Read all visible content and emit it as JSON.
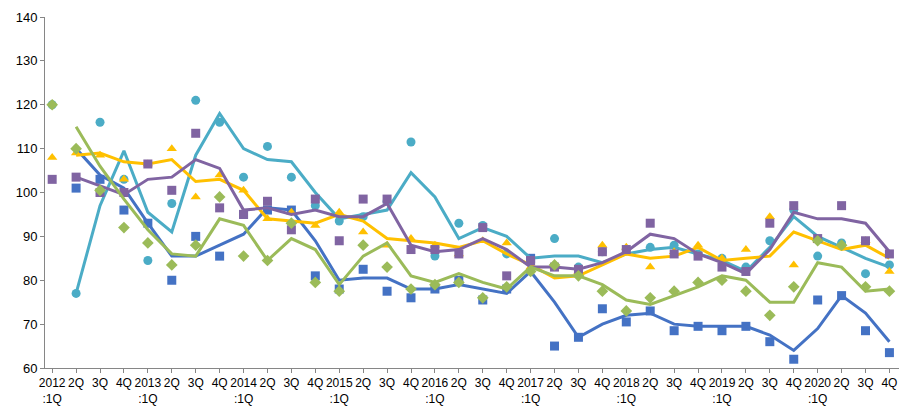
{
  "chart_data": {
    "type": "line",
    "categories": [
      "2012\n:1Q",
      "2Q",
      "3Q",
      "4Q",
      "2013\n:1Q",
      "2Q",
      "3Q",
      "4Q",
      "2014\n:1Q",
      "2Q",
      "3Q",
      "4Q",
      "2015\n:1Q",
      "2Q",
      "3Q",
      "4Q",
      "2016\n:1Q",
      "2Q",
      "3Q",
      "4Q",
      "2017\n:1Q",
      "2Q",
      "3Q",
      "4Q",
      "2018\n:1Q",
      "2Q",
      "3Q",
      "4Q",
      "2019\n:1Q",
      "2Q",
      "3Q",
      "4Q",
      "2020\n:1Q",
      "2Q",
      "3Q",
      "4Q"
    ],
    "ylim": [
      60,
      140
    ],
    "yticks": [
      60,
      70,
      80,
      90,
      100,
      110,
      120,
      130,
      140
    ],
    "grid": false,
    "series": [
      {
        "type": "scatter",
        "marker": "square",
        "color": "#4472c4",
        "values": [
          null,
          101,
          103,
          96,
          93,
          80,
          90,
          85.5,
          95,
          96,
          96,
          81,
          78,
          82.5,
          77.5,
          76,
          78,
          80,
          75.5,
          78,
          85,
          65,
          67,
          73.5,
          70.5,
          73,
          68.5,
          69.5,
          68.5,
          69.5,
          66,
          62,
          75.5,
          76.5,
          68.5,
          63.5
        ]
      },
      {
        "type": "line",
        "line_style": "solid",
        "color": "#4472c4",
        "values": [
          null,
          110,
          104,
          101,
          93,
          85.5,
          85.5,
          88,
          90.5,
          96.5,
          96,
          89,
          80,
          80.5,
          80.5,
          78,
          78,
          79,
          78,
          77,
          82,
          75,
          67,
          70,
          72,
          72.5,
          70,
          69.5,
          69.5,
          69.5,
          67.5,
          64,
          69,
          76.5,
          72.5,
          66
        ]
      },
      {
        "type": "scatter",
        "marker": "circle",
        "color": "#4bacc6",
        "values": [
          120,
          77,
          116,
          103,
          84.5,
          97.5,
          121,
          116,
          103.5,
          110.5,
          103.5,
          97,
          93.5,
          94.5,
          98,
          111.5,
          85.5,
          93,
          92.5,
          86,
          84,
          89.5,
          83,
          86.5,
          87,
          87.5,
          88,
          86,
          85,
          83,
          89,
          96,
          85.5,
          88.5,
          81.5,
          83.5
        ]
      },
      {
        "type": "line",
        "line_style": "solid",
        "color": "#4bacc6",
        "values": [
          null,
          77,
          97,
          109.5,
          95.5,
          91,
          108.5,
          118,
          110,
          107.5,
          107,
          100,
          94,
          95,
          96,
          104.5,
          99,
          89.5,
          92,
          90,
          85,
          85.5,
          85.5,
          84,
          86,
          87,
          87.5,
          86,
          84.5,
          82,
          87.5,
          94.5,
          90,
          87.5,
          85,
          83
        ]
      },
      {
        "type": "scatter",
        "marker": "triangle",
        "color": "#ffc000",
        "values": [
          108,
          109,
          108.5,
          103,
          106.5,
          110,
          99,
          104,
          100.5,
          94,
          95.5,
          92.5,
          95.5,
          91,
          88,
          89.5,
          88,
          86,
          89,
          88.5,
          83,
          83,
          82,
          88,
          87.5,
          83,
          86.5,
          88,
          85,
          87,
          94.5,
          83.5,
          89,
          88,
          89,
          82
        ]
      },
      {
        "type": "line",
        "line_style": "solid",
        "color": "#ffc000",
        "values": [
          null,
          108.5,
          109,
          107,
          106.5,
          107.5,
          102.5,
          103,
          100.5,
          94,
          93.5,
          93,
          95,
          93.5,
          89.5,
          89,
          88.5,
          87.5,
          89,
          86,
          83.5,
          80.5,
          81,
          83.5,
          86,
          85,
          85.5,
          87.5,
          84.5,
          85,
          85.5,
          91,
          89,
          87,
          88,
          85
        ]
      },
      {
        "type": "scatter",
        "marker": "square",
        "color": "#8064a2",
        "values": [
          103,
          103.5,
          100,
          100,
          106.5,
          100.5,
          113.5,
          96.5,
          95,
          98,
          91.5,
          98.5,
          89,
          98.5,
          98.5,
          87,
          87,
          86,
          92,
          81,
          84.5,
          83,
          82.5,
          86.5,
          87,
          93,
          86,
          85.5,
          83,
          82,
          93,
          97,
          89.5,
          97,
          89,
          86
        ]
      },
      {
        "type": "line",
        "line_style": "solid",
        "color": "#8064a2",
        "values": [
          null,
          103.5,
          101.5,
          99.5,
          103,
          103.5,
          107.5,
          105.5,
          96,
          96.5,
          95,
          96,
          94.5,
          94.5,
          97.5,
          88,
          86.5,
          87,
          89.5,
          87,
          83,
          83,
          82.5,
          84,
          86.5,
          90.5,
          89.5,
          86,
          84,
          81.5,
          87,
          95.5,
          94,
          94,
          93,
          86.5
        ]
      },
      {
        "type": "scatter",
        "marker": "diamond",
        "color": "#9bbb59",
        "values": [
          120,
          110,
          100.5,
          92,
          88.5,
          83.5,
          88,
          99,
          85.5,
          84.5,
          93,
          79.5,
          77.5,
          88,
          83,
          78,
          79,
          79.5,
          76,
          78.5,
          82,
          83.5,
          81,
          77.5,
          73,
          76,
          77.5,
          79.5,
          80,
          77.5,
          72,
          78.5,
          89,
          88,
          78.5,
          77.5
        ]
      },
      {
        "type": "line",
        "line_style": "solid",
        "color": "#9bbb59",
        "values": [
          null,
          115,
          106,
          98.5,
          91.5,
          86,
          85.5,
          94,
          92.5,
          84.5,
          89.5,
          87,
          79,
          85.5,
          88.5,
          81,
          79.5,
          81.5,
          79.5,
          78,
          83,
          81,
          81,
          79,
          75.5,
          74.5,
          76.5,
          78.5,
          81,
          80,
          75,
          75,
          84,
          83,
          77.5,
          78
        ]
      }
    ]
  }
}
